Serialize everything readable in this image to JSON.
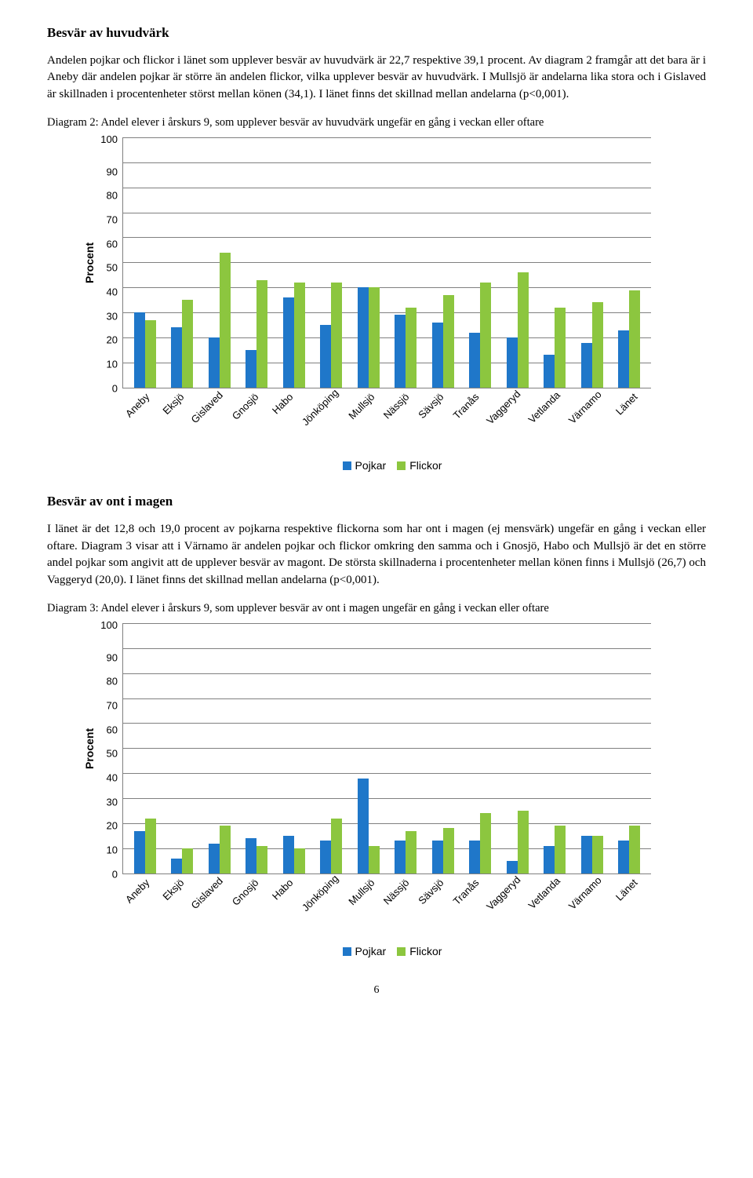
{
  "section1": {
    "heading": "Besvär av huvudvärk",
    "para": "Andelen pojkar och flickor i länet som upplever besvär av huvudvärk är 22,7 respektive 39,1 procent. Av diagram 2 framgår att det bara är i Aneby där andelen pojkar är större än andelen flickor, vilka upplever besvär av huvudvärk. I Mullsjö är andelarna lika stora och i Gislaved är skillnaden i procentenheter störst mellan könen (34,1). I länet finns det skillnad mellan andelarna (p<0,001).",
    "caption": "Diagram 2: Andel elever i årskurs 9, som upplever besvär av huvudvärk ungefär en gång i veckan eller oftare"
  },
  "section2": {
    "heading": "Besvär av ont i magen",
    "para": "I länet är det 12,8 och 19,0 procent av pojkarna respektive flickorna som har ont i magen (ej mensvärk) ungefär en gång i veckan eller oftare. Diagram 3 visar att i Värnamo är andelen pojkar och flickor omkring den samma och i Gnosjö, Habo och Mullsjö är det en större andel pojkar som angivit att de upplever besvär av magont. De största skillnaderna i procentenheter mellan könen finns i Mullsjö (26,7) och Vaggeryd (20,0). I länet finns det skillnad mellan andelarna (p<0,001).",
    "caption": "Diagram 3: Andel elever i årskurs 9, som upplever besvär av ont i magen ungefär en gång i veckan eller oftare"
  },
  "chart_common": {
    "ylabel": "Procent",
    "ymax": 100,
    "ytick_step": 10,
    "yticks": [
      "100",
      "90",
      "80",
      "70",
      "60",
      "50",
      "40",
      "30",
      "20",
      "10",
      "0"
    ],
    "categories": [
      "Aneby",
      "Eksjö",
      "Gislaved",
      "Gnosjö",
      "Habo",
      "Jönköping",
      "Mullsjö",
      "Nässjö",
      "Sävsjö",
      "Tranås",
      "Vaggeryd",
      "Vetlanda",
      "Värnamo",
      "Länet"
    ],
    "series_colors": {
      "pojkar": "#1f77c9",
      "flickor": "#8cc63f"
    },
    "grid_color": "#808080",
    "legend": {
      "pojkar": "Pojkar",
      "flickor": "Flickor"
    }
  },
  "chart2": {
    "pojkar": [
      30,
      24,
      20,
      15,
      36,
      25,
      40,
      29,
      26,
      22,
      20,
      13,
      18,
      23
    ],
    "flickor": [
      27,
      35,
      54,
      43,
      42,
      42,
      40,
      32,
      37,
      42,
      46,
      32,
      34,
      39
    ]
  },
  "chart3": {
    "pojkar": [
      17,
      6,
      12,
      14,
      15,
      13,
      38,
      13,
      13,
      13,
      5,
      11,
      15,
      13
    ],
    "flickor": [
      22,
      10,
      19,
      11,
      10,
      22,
      11,
      17,
      18,
      24,
      25,
      19,
      15,
      19
    ]
  },
  "page_number": "6"
}
